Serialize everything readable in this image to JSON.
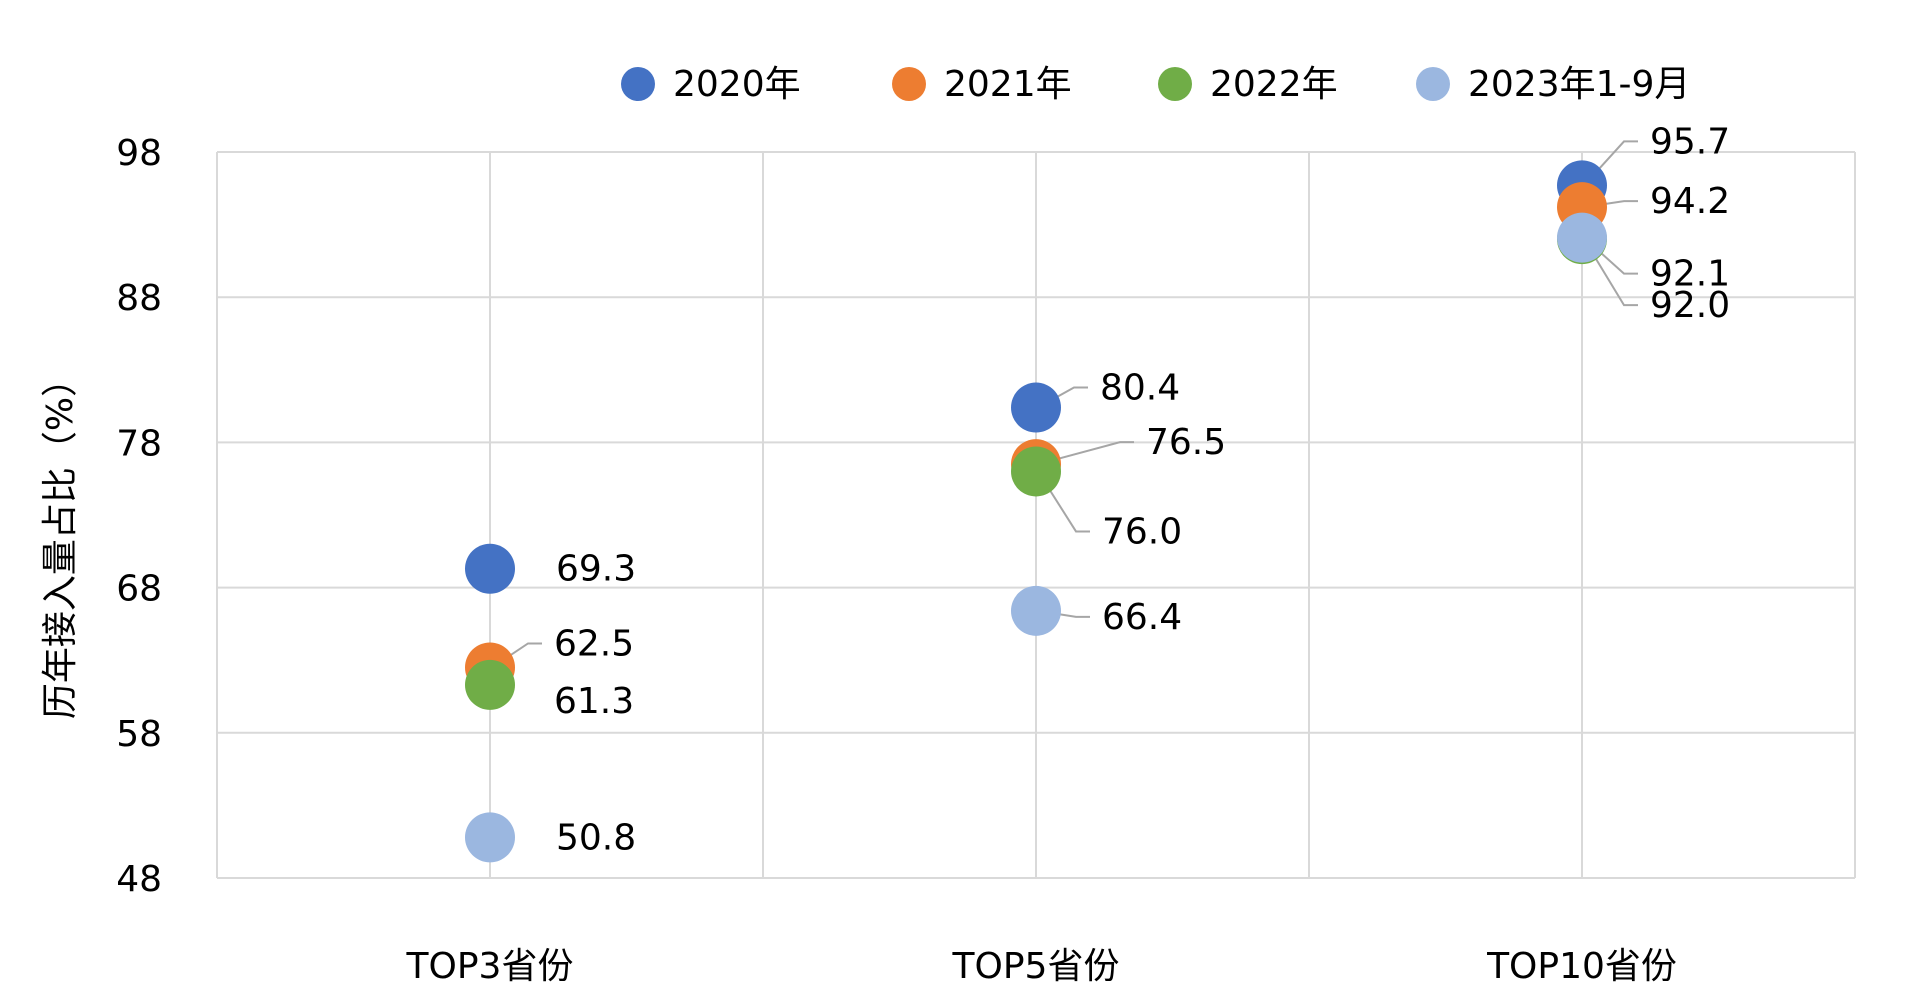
{
  "chart_data": {
    "type": "scatter",
    "title": "",
    "ylabel": "历年接入量占比（%）",
    "xlabel": "",
    "categories": [
      "TOP3省份",
      "TOP5省份",
      "TOP10省份"
    ],
    "ylim": [
      48,
      98
    ],
    "yticks": [
      "48",
      "58",
      "68",
      "78",
      "88",
      "98"
    ],
    "grid": true,
    "legend_position": "top-center",
    "series": [
      {
        "name": "2020年",
        "color": "#4472C4",
        "values": [
          69.3,
          80.4,
          95.7
        ],
        "labels": [
          "69.3",
          "80.4",
          "95.7"
        ]
      },
      {
        "name": "2021年",
        "color": "#ED7D31",
        "values": [
          62.5,
          76.5,
          94.2
        ],
        "labels": [
          "62.5",
          "76.5",
          "94.2"
        ]
      },
      {
        "name": "2022年",
        "color": "#70AD47",
        "values": [
          61.3,
          76.0,
          92.0
        ],
        "labels": [
          "61.3",
          "76.0",
          "92.0"
        ]
      },
      {
        "name": "2023年1-9月",
        "color": "#9BB7E0",
        "values": [
          50.8,
          66.4,
          92.1
        ],
        "labels": [
          "50.8",
          "66.4",
          "92.1"
        ]
      }
    ]
  }
}
